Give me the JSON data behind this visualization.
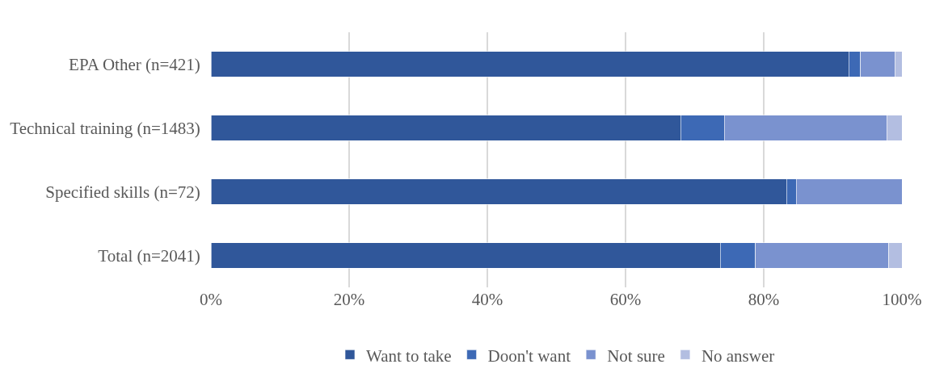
{
  "chart_data": {
    "type": "bar",
    "orientation": "horizontal",
    "stacked": true,
    "categories": [
      "EPA Other (n=421)",
      "Technical training (n=1483)",
      "Specified skills (n=72)",
      "Total (n=2041)"
    ],
    "series": [
      {
        "name": "Want to take",
        "color": "#30579a",
        "values": [
          92.3,
          68.0,
          83.3,
          73.7
        ]
      },
      {
        "name": "Doon't want",
        "color": "#3d69b5",
        "values": [
          1.7,
          6.3,
          1.4,
          5.1
        ]
      },
      {
        "name": "Not sure",
        "color": "#7a92cf",
        "values": [
          5.0,
          23.5,
          15.3,
          19.3
        ]
      },
      {
        "name": "No answer",
        "color": "#b3bee1",
        "values": [
          1.0,
          2.2,
          null,
          1.9
        ]
      }
    ],
    "xlim": [
      0,
      100
    ],
    "xticks": [
      {
        "value": 0,
        "label": "0%"
      },
      {
        "value": 20,
        "label": "20%"
      },
      {
        "value": 40,
        "label": "40%"
      },
      {
        "value": 60,
        "label": "60%"
      },
      {
        "value": 80,
        "label": "80%"
      },
      {
        "value": 100,
        "label": "100%"
      }
    ],
    "grid": "x",
    "legend": "bottom"
  }
}
